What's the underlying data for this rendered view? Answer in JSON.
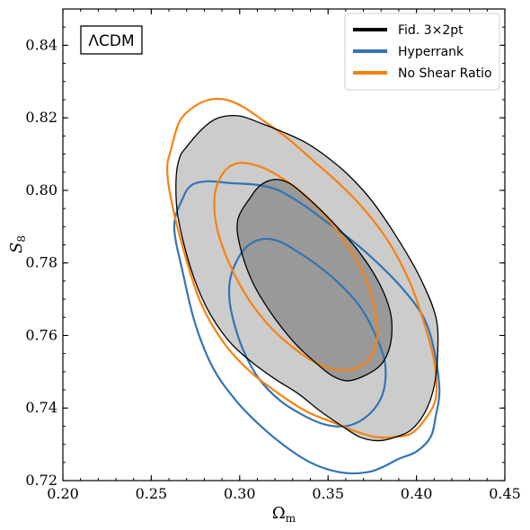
{
  "chart_data": {
    "type": "contour",
    "xlabel": "Ωm",
    "xlabel_main": "Ω",
    "xlabel_sub": "m",
    "ylabel": "S8",
    "ylabel_main": "S",
    "ylabel_sub": "8",
    "xlim": [
      0.2,
      0.45
    ],
    "ylim": [
      0.72,
      0.85
    ],
    "xticks": [
      0.2,
      0.25,
      0.3,
      0.35,
      0.4,
      0.45
    ],
    "xtick_labels": [
      "0.20",
      "0.25",
      "0.30",
      "0.35",
      "0.40",
      "0.45"
    ],
    "yticks": [
      0.72,
      0.74,
      0.76,
      0.78,
      0.8,
      0.82,
      0.84
    ],
    "ytick_labels": [
      "0.72",
      "0.74",
      "0.76",
      "0.78",
      "0.80",
      "0.82",
      "0.84"
    ],
    "model_label": "ΛCDM",
    "legend_position": "top-right",
    "series": [
      {
        "name": "Fid. 3×2pt",
        "color": "#000000",
        "fills": [
          "#cccccc",
          "#999999"
        ],
        "contours": [
          {
            "level": "outer",
            "points": [
              [
                0.27,
                0.812
              ],
              [
                0.279,
                0.817
              ],
              [
                0.288,
                0.82
              ],
              [
                0.3,
                0.8205
              ],
              [
                0.312,
                0.8185
              ],
              [
                0.325,
                0.816
              ],
              [
                0.338,
                0.813
              ],
              [
                0.35,
                0.809
              ],
              [
                0.362,
                0.804
              ],
              [
                0.375,
                0.797
              ],
              [
                0.389,
                0.787
              ],
              [
                0.402,
                0.776
              ],
              [
                0.411,
                0.765
              ],
              [
                0.412,
                0.755
              ],
              [
                0.41,
                0.746
              ],
              [
                0.405,
                0.739
              ],
              [
                0.397,
                0.734
              ],
              [
                0.387,
                0.7318
              ],
              [
                0.378,
                0.731
              ],
              [
                0.368,
                0.732
              ],
              [
                0.358,
                0.735
              ],
              [
                0.346,
                0.739
              ],
              [
                0.333,
                0.744
              ],
              [
                0.32,
                0.748
              ],
              [
                0.306,
                0.753
              ],
              [
                0.293,
                0.759
              ],
              [
                0.281,
                0.768
              ],
              [
                0.272,
                0.779
              ],
              [
                0.265,
                0.793
              ],
              [
                0.264,
                0.803
              ],
              [
                0.266,
                0.809
              ]
            ]
          },
          {
            "level": "inner",
            "points": [
              [
                0.306,
                0.798
              ],
              [
                0.312,
                0.8015
              ],
              [
                0.32,
                0.803
              ],
              [
                0.328,
                0.802
              ],
              [
                0.336,
                0.799
              ],
              [
                0.345,
                0.795
              ],
              [
                0.355,
                0.79
              ],
              [
                0.366,
                0.784
              ],
              [
                0.376,
                0.777
              ],
              [
                0.383,
                0.77
              ],
              [
                0.386,
                0.764
              ],
              [
                0.385,
                0.757
              ],
              [
                0.38,
                0.752
              ],
              [
                0.371,
                0.749
              ],
              [
                0.361,
                0.7475
              ],
              [
                0.352,
                0.749
              ],
              [
                0.343,
                0.7525
              ],
              [
                0.331,
                0.758
              ],
              [
                0.318,
                0.766
              ],
              [
                0.307,
                0.775
              ],
              [
                0.3,
                0.785
              ],
              [
                0.299,
                0.792
              ]
            ]
          }
        ]
      },
      {
        "name": "Hyperrank",
        "color": "#3274b5",
        "contours": [
          {
            "level": "outer",
            "points": [
              [
                0.268,
                0.798
              ],
              [
                0.273,
                0.8015
              ],
              [
                0.282,
                0.8025
              ],
              [
                0.295,
                0.802
              ],
              [
                0.31,
                0.8015
              ],
              [
                0.322,
                0.8
              ],
              [
                0.336,
                0.796
              ],
              [
                0.35,
                0.791
              ],
              [
                0.364,
                0.786
              ],
              [
                0.378,
                0.78
              ],
              [
                0.392,
                0.773
              ],
              [
                0.404,
                0.765
              ],
              [
                0.41,
                0.756
              ],
              [
                0.413,
                0.745
              ],
              [
                0.411,
                0.738
              ],
              [
                0.408,
                0.732
              ],
              [
                0.4,
                0.728
              ],
              [
                0.39,
                0.726
              ],
              [
                0.382,
                0.724
              ],
              [
                0.374,
                0.7225
              ],
              [
                0.363,
                0.722
              ],
              [
                0.352,
                0.7228
              ],
              [
                0.34,
                0.725
              ],
              [
                0.327,
                0.729
              ],
              [
                0.312,
                0.735
              ],
              [
                0.298,
                0.742
              ],
              [
                0.285,
                0.751
              ],
              [
                0.275,
                0.763
              ],
              [
                0.268,
                0.777
              ],
              [
                0.263,
                0.79
              ]
            ]
          },
          {
            "level": "inner",
            "points": [
              [
                0.296,
                0.778
              ],
              [
                0.303,
                0.784
              ],
              [
                0.312,
                0.7865
              ],
              [
                0.322,
                0.786
              ],
              [
                0.333,
                0.783
              ],
              [
                0.345,
                0.779
              ],
              [
                0.357,
                0.774
              ],
              [
                0.368,
                0.768
              ],
              [
                0.376,
                0.761
              ],
              [
                0.382,
                0.753
              ],
              [
                0.382,
                0.746
              ],
              [
                0.378,
                0.741
              ],
              [
                0.37,
                0.737
              ],
              [
                0.36,
                0.735
              ],
              [
                0.348,
                0.7355
              ],
              [
                0.336,
                0.738
              ],
              [
                0.323,
                0.742
              ],
              [
                0.311,
                0.748
              ],
              [
                0.302,
                0.756
              ],
              [
                0.296,
                0.765
              ],
              [
                0.294,
                0.772
              ]
            ]
          }
        ]
      },
      {
        "name": "No Shear Ratio",
        "color": "#f7820f",
        "contours": [
          {
            "level": "outer",
            "points": [
              [
                0.261,
                0.811
              ],
              [
                0.266,
                0.819
              ],
              [
                0.274,
                0.823
              ],
              [
                0.283,
                0.825
              ],
              [
                0.292,
                0.825
              ],
              [
                0.302,
                0.823
              ],
              [
                0.314,
                0.819
              ],
              [
                0.328,
                0.814
              ],
              [
                0.342,
                0.808
              ],
              [
                0.356,
                0.802
              ],
              [
                0.37,
                0.795
              ],
              [
                0.384,
                0.786
              ],
              [
                0.396,
                0.775
              ],
              [
                0.404,
                0.764
              ],
              [
                0.41,
                0.753
              ],
              [
                0.411,
                0.743
              ],
              [
                0.405,
                0.737
              ],
              [
                0.397,
                0.733
              ],
              [
                0.387,
                0.732
              ],
              [
                0.377,
                0.732
              ],
              [
                0.366,
                0.7335
              ],
              [
                0.353,
                0.736
              ],
              [
                0.338,
                0.739
              ],
              [
                0.322,
                0.744
              ],
              [
                0.306,
                0.75
              ],
              [
                0.291,
                0.758
              ],
              [
                0.278,
                0.769
              ],
              [
                0.268,
                0.784
              ],
              [
                0.261,
                0.798
              ],
              [
                0.259,
                0.806
              ]
            ]
          },
          {
            "level": "inner",
            "points": [
              [
                0.286,
                0.799
              ],
              [
                0.291,
                0.805
              ],
              [
                0.299,
                0.8075
              ],
              [
                0.31,
                0.8068
              ],
              [
                0.322,
                0.804
              ],
              [
                0.336,
                0.799
              ],
              [
                0.35,
                0.792
              ],
              [
                0.362,
                0.784
              ],
              [
                0.371,
                0.776
              ],
              [
                0.376,
                0.768
              ],
              [
                0.378,
                0.76
              ],
              [
                0.374,
                0.754
              ],
              [
                0.366,
                0.751
              ],
              [
                0.356,
                0.7505
              ],
              [
                0.345,
                0.752
              ],
              [
                0.332,
                0.756
              ],
              [
                0.318,
                0.762
              ],
              [
                0.305,
                0.77
              ],
              [
                0.294,
                0.78
              ],
              [
                0.287,
                0.79
              ]
            ]
          }
        ]
      }
    ]
  }
}
